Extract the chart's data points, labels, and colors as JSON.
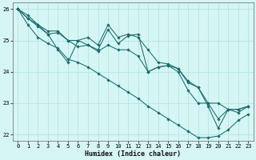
{
  "xlabel": "Humidex (Indice chaleur)",
  "xlim": [
    -0.5,
    23.5
  ],
  "ylim": [
    21.8,
    26.2
  ],
  "yticks": [
    22,
    23,
    24,
    25,
    26
  ],
  "xticks": [
    0,
    1,
    2,
    3,
    4,
    5,
    6,
    7,
    8,
    9,
    10,
    11,
    12,
    13,
    14,
    15,
    16,
    17,
    18,
    19,
    20,
    21,
    22,
    23
  ],
  "background_color": "#d6f5f5",
  "grid_color": "#b8e8e8",
  "line_color": "#1a6b6b",
  "series": [
    [
      26.0,
      25.8,
      25.5,
      25.3,
      25.3,
      25.0,
      25.0,
      25.1,
      24.85,
      25.5,
      25.1,
      25.2,
      25.1,
      24.7,
      24.3,
      24.25,
      24.1,
      23.7,
      23.5,
      23.0,
      23.0,
      22.8,
      22.8,
      22.9
    ],
    [
      26.0,
      25.7,
      25.5,
      25.2,
      24.7,
      24.3,
      25.0,
      24.85,
      24.7,
      25.35,
      24.9,
      25.15,
      25.2,
      24.0,
      24.15,
      24.2,
      24.1,
      23.65,
      23.5,
      22.9,
      22.2,
      22.8,
      22.8,
      22.9
    ],
    [
      26.0,
      25.7,
      25.45,
      25.2,
      25.25,
      25.0,
      24.8,
      24.85,
      24.65,
      24.85,
      24.7,
      24.7,
      24.5,
      24.0,
      24.15,
      24.2,
      24.0,
      23.4,
      23.0,
      23.0,
      22.5,
      22.8,
      22.7,
      22.9
    ],
    [
      26.0,
      25.5,
      25.1,
      24.9,
      24.75,
      24.4,
      24.3,
      24.15,
      23.95,
      23.75,
      23.55,
      23.35,
      23.15,
      22.9,
      22.7,
      22.5,
      22.3,
      22.1,
      21.9,
      21.9,
      21.95,
      22.15,
      22.45,
      22.65
    ]
  ]
}
